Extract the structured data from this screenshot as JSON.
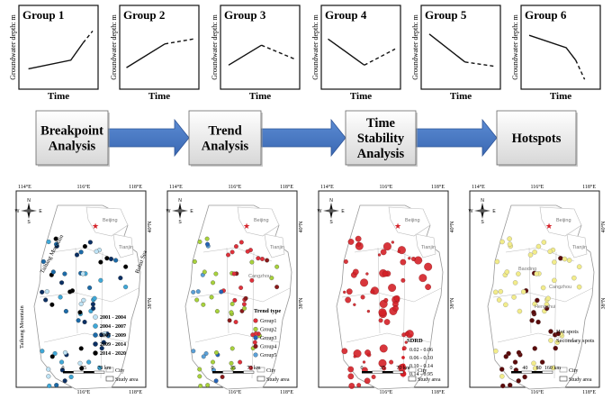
{
  "groups": [
    {
      "title": "Group 1",
      "ylabel": "Groundwater depth: m",
      "xlabel": "Time"
    },
    {
      "title": "Group 2",
      "ylabel": "Groundwater depth: m",
      "xlabel": "Time"
    },
    {
      "title": "Group 3",
      "ylabel": "Groundwater depth: m",
      "xlabel": "Time"
    },
    {
      "title": "Group 4",
      "ylabel": "Groundwater depth: m",
      "xlabel": "Time"
    },
    {
      "title": "Group 5",
      "ylabel": "Groundwater depth: m",
      "xlabel": "Time"
    },
    {
      "title": "Group 6",
      "ylabel": "Groundwater depth: m",
      "xlabel": "Time"
    }
  ],
  "steps": [
    {
      "lines": [
        "Breakpoint",
        "Analysis"
      ]
    },
    {
      "lines": [
        "Trend",
        "Analysis"
      ]
    },
    {
      "lines": [
        "Time",
        "Stability",
        "Analysis"
      ]
    },
    {
      "lines": [
        "Hotspots"
      ]
    }
  ],
  "maps": {
    "lon_top": [
      "114°E",
      "116°E",
      "118°E"
    ],
    "lon_bottom": [
      "116°E",
      "118°E"
    ],
    "lat": [
      "40°N",
      "38°N"
    ],
    "compass": {
      "n": "N",
      "s": "S",
      "w": "W",
      "e": "E"
    },
    "beijing": "Beijing",
    "tianjin": "Tianjin",
    "cangzhou": "Cangzhou",
    "baoding": "Baoding",
    "hengshui": "Hengshui",
    "map1_labels": {
      "taihang_top": "Taihang Mountain",
      "taihang_left": "Taihang Mountain",
      "bohai": "Bohai Sea"
    },
    "map1_legend": {
      "items": [
        {
          "label": "2001 - 2004",
          "color": "#bfe3f5"
        },
        {
          "label": "2004 - 2007",
          "color": "#3fa8d8"
        },
        {
          "label": "2007 - 2009",
          "color": "#1b6aa8"
        },
        {
          "label": "2009 - 2014",
          "color": "#0b2f63"
        },
        {
          "label": "2014 - 2020",
          "color": "#000000"
        }
      ],
      "city": "City",
      "study": "Study area",
      "scale": [
        "0",
        "35",
        "70 km"
      ]
    },
    "map2_legend": {
      "title": "Trend type",
      "items": [
        {
          "label": "Group1",
          "color": "#e0303a"
        },
        {
          "label": "Group2",
          "color": "#a8d23b"
        },
        {
          "label": "Group3",
          "color": "#2563b8"
        },
        {
          "label": "Group4",
          "color": "#8b1a1a"
        },
        {
          "label": "Group5",
          "color": "#5aa0d8"
        }
      ],
      "city": "City",
      "study": "Study area",
      "scale": [
        "0",
        "35",
        "70 km"
      ]
    },
    "map3_legend": {
      "title": "SDRD",
      "items": [
        {
          "label": "0.02 - 0.06",
          "size": 1.5
        },
        {
          "label": "0.06 - 0.10",
          "size": 2.3
        },
        {
          "label": "0.10 - 0.14",
          "size": 3.2
        },
        {
          "label": "0.14 - 0.95",
          "size": 4.3
        }
      ],
      "color": "#d42027",
      "city": "City",
      "study": "Study area",
      "scale": [
        "0",
        "35",
        "70 km"
      ]
    },
    "map4_legend": {
      "items": [
        {
          "label": "Hot spots",
          "color": "#5a0a0a"
        },
        {
          "label": "Secondary spots",
          "color": "#f2ec8a"
        }
      ],
      "city": "City",
      "study": "Study area",
      "scale": [
        "0",
        "40",
        "80",
        "160 km"
      ]
    }
  }
}
